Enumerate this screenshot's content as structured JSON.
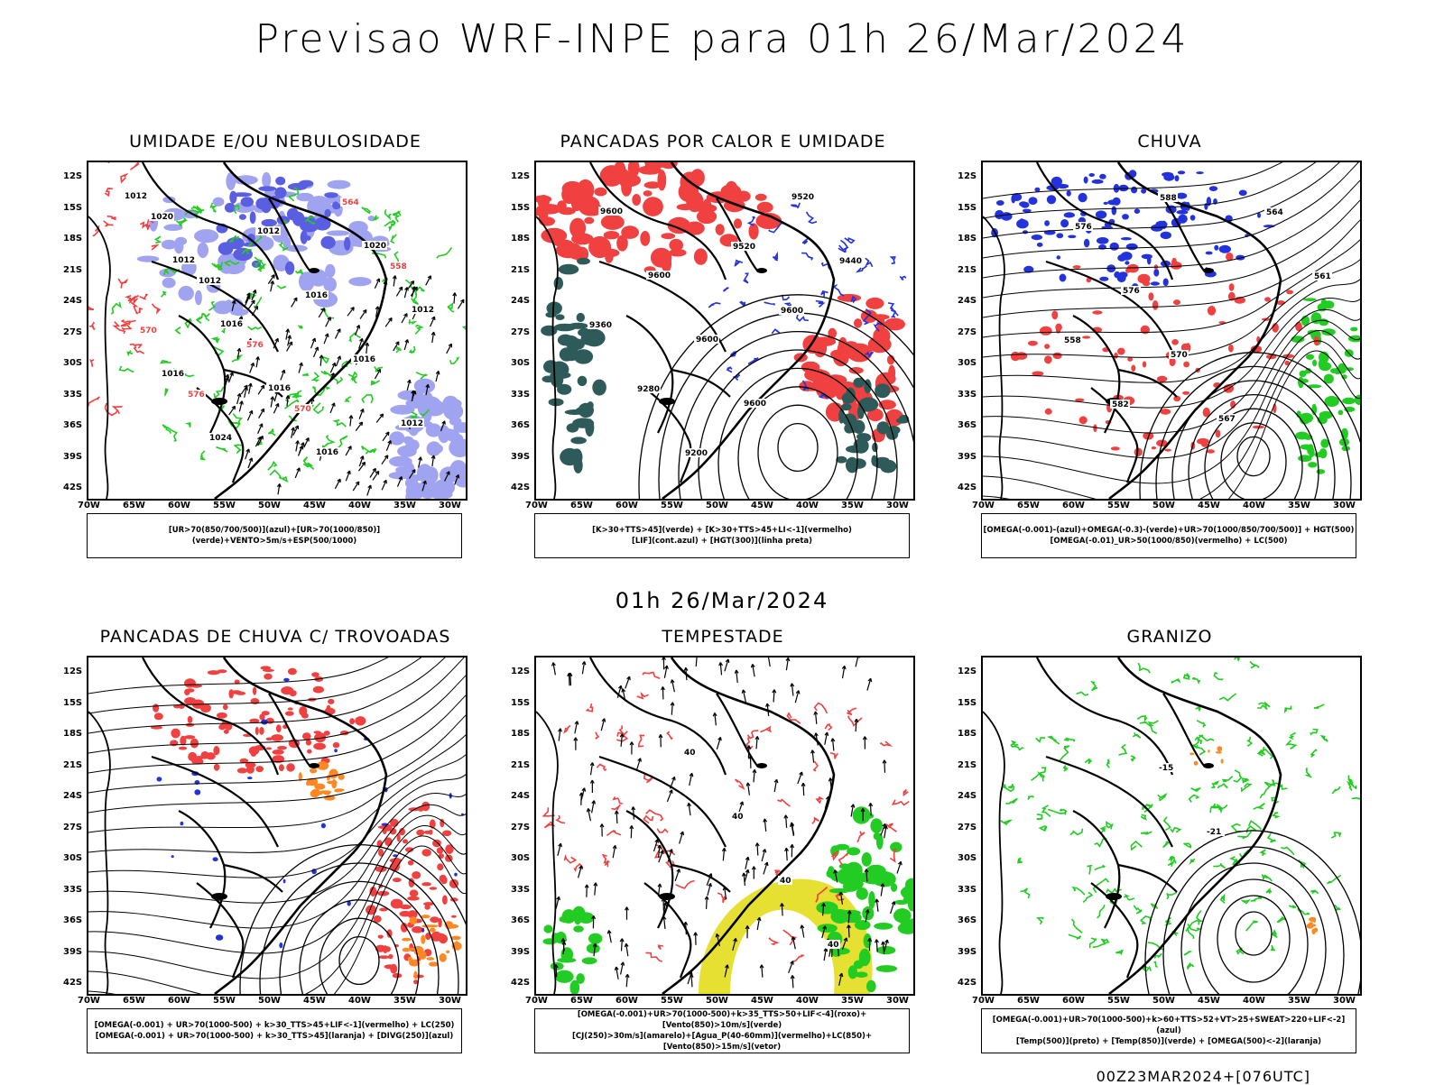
{
  "main_title": "Previsao WRF-INPE  para 01h 26/Mar/2024",
  "middle_title": "01h 26/Mar/2024",
  "footer": "00Z23MAR2024+[076UTC]",
  "lat_labels": [
    "12S",
    "15S",
    "18S",
    "21S",
    "24S",
    "27S",
    "30S",
    "33S",
    "36S",
    "39S",
    "42S"
  ],
  "lon_labels": [
    "70W",
    "65W",
    "60W",
    "55W",
    "50W",
    "45W",
    "40W",
    "35W",
    "30W"
  ],
  "panels": [
    {
      "title": "UMIDADE E/OU NEBULOSIDADE",
      "legend": [
        "[UR>70(850/700/500)](azul)+[UR>70(1000/850)](verde)+VENTO>5m/s+ESP(500/1000)"
      ],
      "contour_labels": [
        "1012",
        "1012",
        "1016",
        "1016",
        "1016",
        "1020",
        "1012",
        "1016",
        "1024",
        "1012",
        "1016",
        "1016",
        "1012",
        "1020",
        "1012",
        "576",
        "570",
        "564",
        "558",
        "570",
        "576"
      ]
    },
    {
      "title": "PANCADAS POR CALOR E UMIDADE",
      "legend": [
        "[K>30+TTS>45](verde) + [K>30+TTS>45+LI<-1](vermelho)",
        "[LIF](cont.azul) + [HGT(300)](linha preta)"
      ],
      "contour_labels": [
        "9600",
        "9600",
        "9600",
        "9600",
        "9520",
        "9440",
        "9360",
        "9280",
        "9200",
        "9520",
        "9600"
      ]
    },
    {
      "title": "CHUVA",
      "legend": [
        "[OMEGA(-0.001)-(azul)+OMEGA(-0.3)-(verde)+UR>70(1000/850/700/500)] + HGT(500)",
        "[OMEGA(-0.01)_UR>50(1000/850)(vermelho) + LC(500)"
      ],
      "contour_labels": [
        "576",
        "576",
        "570",
        "567",
        "564",
        "561",
        "558",
        "582",
        "588"
      ]
    },
    {
      "title": "PANCADAS DE CHUVA C/ TROVOADAS",
      "legend": [
        "[OMEGA(-0.001) + UR>70(1000-500) + k>30_TTS>45+LIF<-1](vermelho) + LC(250)",
        "[OMEGA(-0.001) + UR>70(1000-500) + k>30_TTS>45](laranja) + [DIVG(250)](azul)"
      ],
      "contour_labels": []
    },
    {
      "title": "TEMPESTADE",
      "legend": [
        "[OMEGA(-0.001)+UR>70(1000-500)+k>35_TTS>50+LIF<-4](roxo)+[Vento(850)>10m/s](verde)",
        "[CJ(250)>30m/s](amarelo)+[Agua_P(40-60mm)](vermelho)+LC(850)+[Vento(850)>15m/s](vetor)"
      ],
      "contour_labels": [
        "40",
        "40",
        "40",
        "40"
      ]
    },
    {
      "title": "GRANIZO",
      "legend": [
        "[OMEGA(-0.001)+UR>70(1000-500)+k>60+TTS>52+VT>25+SWEAT>220+LIF<-2](azul)",
        "[Temp(500)](preto) + [Temp(850)](verde) + [OMEGA(500)<-2](laranja)"
      ],
      "contour_labels": [
        "-15",
        "-21"
      ]
    }
  ],
  "colors": {
    "red": "#f04040",
    "green": "#22cc22",
    "blue": "#2233dd",
    "lightblue": "#a0a4f0",
    "teal": "#2f5a5a",
    "yellow": "#e6e032",
    "orange": "#ff8822",
    "black": "#000000"
  }
}
